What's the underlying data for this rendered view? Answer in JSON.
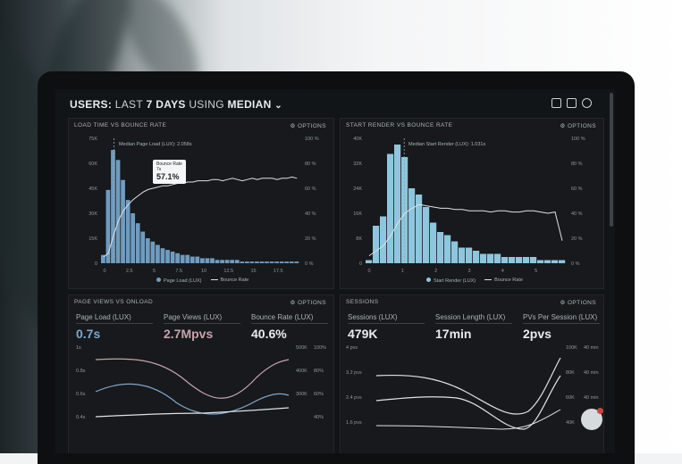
{
  "header": {
    "prefix": "USERS:",
    "middle": "LAST",
    "days": "7 DAYS",
    "using": "USING",
    "stat": "MEDIAN"
  },
  "options_label": "OPTIONS",
  "panels": {
    "load_time": {
      "title": "LOAD TIME VS BOUNCE RATE",
      "median_label": "Median Page Load (LUX): 2.058s",
      "y_left": [
        "75K",
        "60K",
        "45K",
        "30K",
        "15K",
        "0"
      ],
      "y_right": [
        "100 %",
        "80 %",
        "60 %",
        "40 %",
        "20 %",
        "0 %"
      ],
      "x_ticks": [
        "0",
        "2.5",
        "5",
        "7.5",
        "10",
        "12.5",
        "15",
        "17.5"
      ],
      "legend": [
        "Page Load (LUX)",
        "Bounce Rate"
      ],
      "tooltip": {
        "title": "Bounce Rate",
        "sub": "7s",
        "value": "57.1%"
      }
    },
    "start_render": {
      "title": "START RENDER VS BOUNCE RATE",
      "median_label": "Median Start Render (LUX): 1.031s",
      "y_left": [
        "40K",
        "32K",
        "24K",
        "16K",
        "8K",
        "0"
      ],
      "y_right": [
        "100 %",
        "80 %",
        "60 %",
        "40 %",
        "20 %",
        "0 %"
      ],
      "x_ticks": [
        "0",
        "1",
        "2",
        "3",
        "4",
        "5"
      ],
      "legend": [
        "Start Render (LUX)",
        "Bounce Rate"
      ]
    },
    "page_views": {
      "title": "PAGE VIEWS VS ONLOAD",
      "metrics": [
        {
          "label": "Page Load (LUX)",
          "value": "0.7s",
          "color": "#7fa8cf"
        },
        {
          "label": "Page Views (LUX)",
          "value": "2.7Mpvs",
          "color": "#c8a3ad"
        },
        {
          "label": "Bounce Rate (LUX)",
          "value": "40.6%",
          "color": "#e8ecef"
        }
      ],
      "y_left": [
        "1s",
        "0.8s",
        "0.6s",
        "0.4s"
      ],
      "y_right_a": [
        "500K",
        "400K",
        "300K"
      ],
      "y_right_b": [
        "100%",
        "80%",
        "60%",
        "40%"
      ]
    },
    "sessions": {
      "title": "SESSIONS",
      "metrics": [
        {
          "label": "Sessions (LUX)",
          "value": "479K",
          "color": "#e8ecef"
        },
        {
          "label": "Session Length (LUX)",
          "value": "17min",
          "color": "#e8ecef"
        },
        {
          "label": "PVs Per Session (LUX)",
          "value": "2pvs",
          "color": "#e8ecef"
        }
      ],
      "y_left": [
        "4 pvs",
        "3.2 pvs",
        "2.4 pvs",
        "1.6 pvs"
      ],
      "y_right_a": [
        "100K",
        "80K",
        "60K",
        "40K"
      ],
      "y_right_b": [
        "40 min",
        "40 min",
        "40 min",
        "40 min"
      ]
    }
  },
  "colors": {
    "bars": "#6f9cc0",
    "bars_right": "#8ec6dd",
    "line": "#dfe3e6",
    "pink": "#c8a3ad"
  }
}
